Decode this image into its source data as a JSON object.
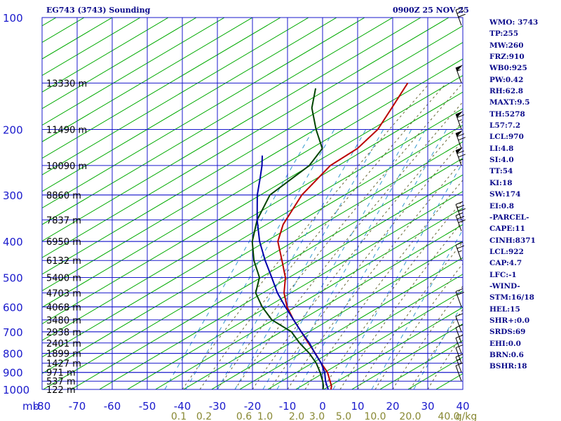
{
  "header": {
    "station_title": "EG743 (3743) Sounding",
    "timestamp": "0900Z 25 NOV 25"
  },
  "indices": [
    "WMO: 3743",
    "TP:255",
    "MW:260",
    "FRZ:910",
    "WB0:925",
    "PW:0.42",
    "RH:62.8",
    "MAXT:9.5",
    "TH:5278",
    "L57:7.2",
    "LCL:970",
    "LI:4.8",
    "SI:4.0",
    "TT:54",
    "KI:18",
    "SW:174",
    "EI:0.8",
    "-PARCEL-",
    "CAPE:11",
    "CINH:8371",
    "LCL:922",
    "CAP:4.7",
    "LFC:-1",
    "-WIND-",
    "STM:16/18",
    "HEL:15",
    "SHR+:0.0",
    "SRDS:69",
    "EHI:0.0",
    "BRN:0.6",
    "BSHR:18"
  ],
  "colors": {
    "grid": "#1a1acc",
    "isotherm": "#1a1acc",
    "dry_adiabat": "#00aa00",
    "moist_adiabat": "#666633",
    "mixing_ratio": "#3399cc",
    "temperature": "#bb0000",
    "dewpoint": "#004400",
    "parcel": "#0000aa",
    "axis_text": "#1a1acc",
    "mixing_text": "#888833",
    "height_text": "#000000"
  },
  "chart_data": {
    "type": "skew-t",
    "xlabel": "mb",
    "pressure_levels": [
      100,
      200,
      300,
      400,
      500,
      600,
      700,
      800,
      900,
      1000
    ],
    "temperature_ticks": [
      -80,
      -70,
      -60,
      -50,
      -40,
      -30,
      -20,
      -10,
      0,
      10,
      20,
      30,
      40
    ],
    "ylim": [
      100,
      1000
    ],
    "xlim": [
      -80,
      40
    ],
    "pressure_scale": "log",
    "height_labels": [
      {
        "p": 150,
        "label": "13330 m"
      },
      {
        "p": 200,
        "label": "11490 m"
      },
      {
        "p": 250,
        "label": "10090 m"
      },
      {
        "p": 300,
        "label": "8860 m"
      },
      {
        "p": 350,
        "label": "7837 m"
      },
      {
        "p": 400,
        "label": "6950 m"
      },
      {
        "p": 450,
        "label": "6132 m"
      },
      {
        "p": 500,
        "label": "5400 m"
      },
      {
        "p": 550,
        "label": "4703 m"
      },
      {
        "p": 600,
        "label": "4068 m"
      },
      {
        "p": 650,
        "label": "3480 m"
      },
      {
        "p": 700,
        "label": "2938 m"
      },
      {
        "p": 750,
        "label": "2401 m"
      },
      {
        "p": 800,
        "label": "1899 m"
      },
      {
        "p": 850,
        "label": "1427 m"
      },
      {
        "p": 900,
        "label": "971 m"
      },
      {
        "p": 950,
        "label": "537 m"
      },
      {
        "p": 1000,
        "label": "122 m"
      }
    ],
    "mixing_ratio_labels": [
      "0.1",
      "0.2",
      "0.6",
      "1.0",
      "2.0",
      "3.0",
      "5.0",
      "10.0",
      "20.0",
      "40.0",
      "g/kg"
    ],
    "series": [
      {
        "points": [
          [
            1010,
            2.1
          ],
          [
            1000,
            2.4
          ],
          [
            980,
            1.7
          ],
          [
            950,
            0
          ],
          [
            900,
            -3
          ],
          [
            850,
            -7.2
          ],
          [
            800,
            -11.4
          ],
          [
            750,
            -16.1
          ],
          [
            700,
            -21
          ],
          [
            650,
            -26.3
          ],
          [
            600,
            -31.5
          ],
          [
            550,
            -36
          ],
          [
            500,
            -39.6
          ],
          [
            450,
            -45
          ],
          [
            400,
            -51.1
          ],
          [
            360,
            -54
          ],
          [
            300,
            -56.3
          ],
          [
            250,
            -55.8
          ],
          [
            225,
            -52.5
          ],
          [
            200,
            -51.6
          ],
          [
            175,
            -53.2
          ],
          [
            150,
            -55.1
          ]
        ]
      },
      {
        "points": [
          [
            1000,
            0.1
          ],
          [
            980,
            -0.6
          ],
          [
            950,
            -2.1
          ],
          [
            900,
            -5.1
          ],
          [
            850,
            -8.6
          ],
          [
            800,
            -13.1
          ],
          [
            750,
            -18.6
          ],
          [
            700,
            -23.8
          ],
          [
            650,
            -32.5
          ],
          [
            600,
            -38.6
          ],
          [
            550,
            -44.1
          ],
          [
            500,
            -47
          ],
          [
            450,
            -53
          ],
          [
            400,
            -58.4
          ],
          [
            350,
            -62.6
          ],
          [
            300,
            -65.4
          ],
          [
            250,
            -61.8
          ],
          [
            225,
            -62.5
          ],
          [
            200,
            -69.2
          ],
          [
            175,
            -76
          ],
          [
            155,
            -80
          ]
        ]
      },
      {
        "points": [
          [
            1000,
            1.6
          ],
          [
            950,
            -1.3
          ],
          [
            900,
            -3.8
          ],
          [
            850,
            -7.2
          ],
          [
            800,
            -11.5
          ],
          [
            750,
            -15.8
          ],
          [
            700,
            -21
          ],
          [
            650,
            -26.3
          ],
          [
            600,
            -32
          ],
          [
            550,
            -37.9
          ],
          [
            500,
            -43.5
          ],
          [
            450,
            -49.8
          ],
          [
            400,
            -56.3
          ],
          [
            350,
            -62.6
          ],
          [
            300,
            -69
          ],
          [
            270,
            -72.6
          ],
          [
            250,
            -75.3
          ],
          [
            235,
            -77.8
          ]
        ]
      }
    ],
    "wind_barbs": [
      {
        "p": 950,
        "speed": 10
      },
      {
        "p": 900,
        "speed": 15
      },
      {
        "p": 850,
        "speed": 10
      },
      {
        "p": 800,
        "speed": 10
      },
      {
        "p": 750,
        "speed": 10
      },
      {
        "p": 700,
        "speed": 10
      },
      {
        "p": 600,
        "speed": 20
      },
      {
        "p": 450,
        "speed": 25
      },
      {
        "p": 375,
        "speed": 30
      },
      {
        "p": 350,
        "speed": 30
      },
      {
        "p": 250,
        "speed": 75
      },
      {
        "p": 225,
        "speed": 70
      },
      {
        "p": 200,
        "speed": 65
      },
      {
        "p": 150,
        "speed": 55
      },
      {
        "p": 105,
        "speed": 30
      }
    ]
  }
}
